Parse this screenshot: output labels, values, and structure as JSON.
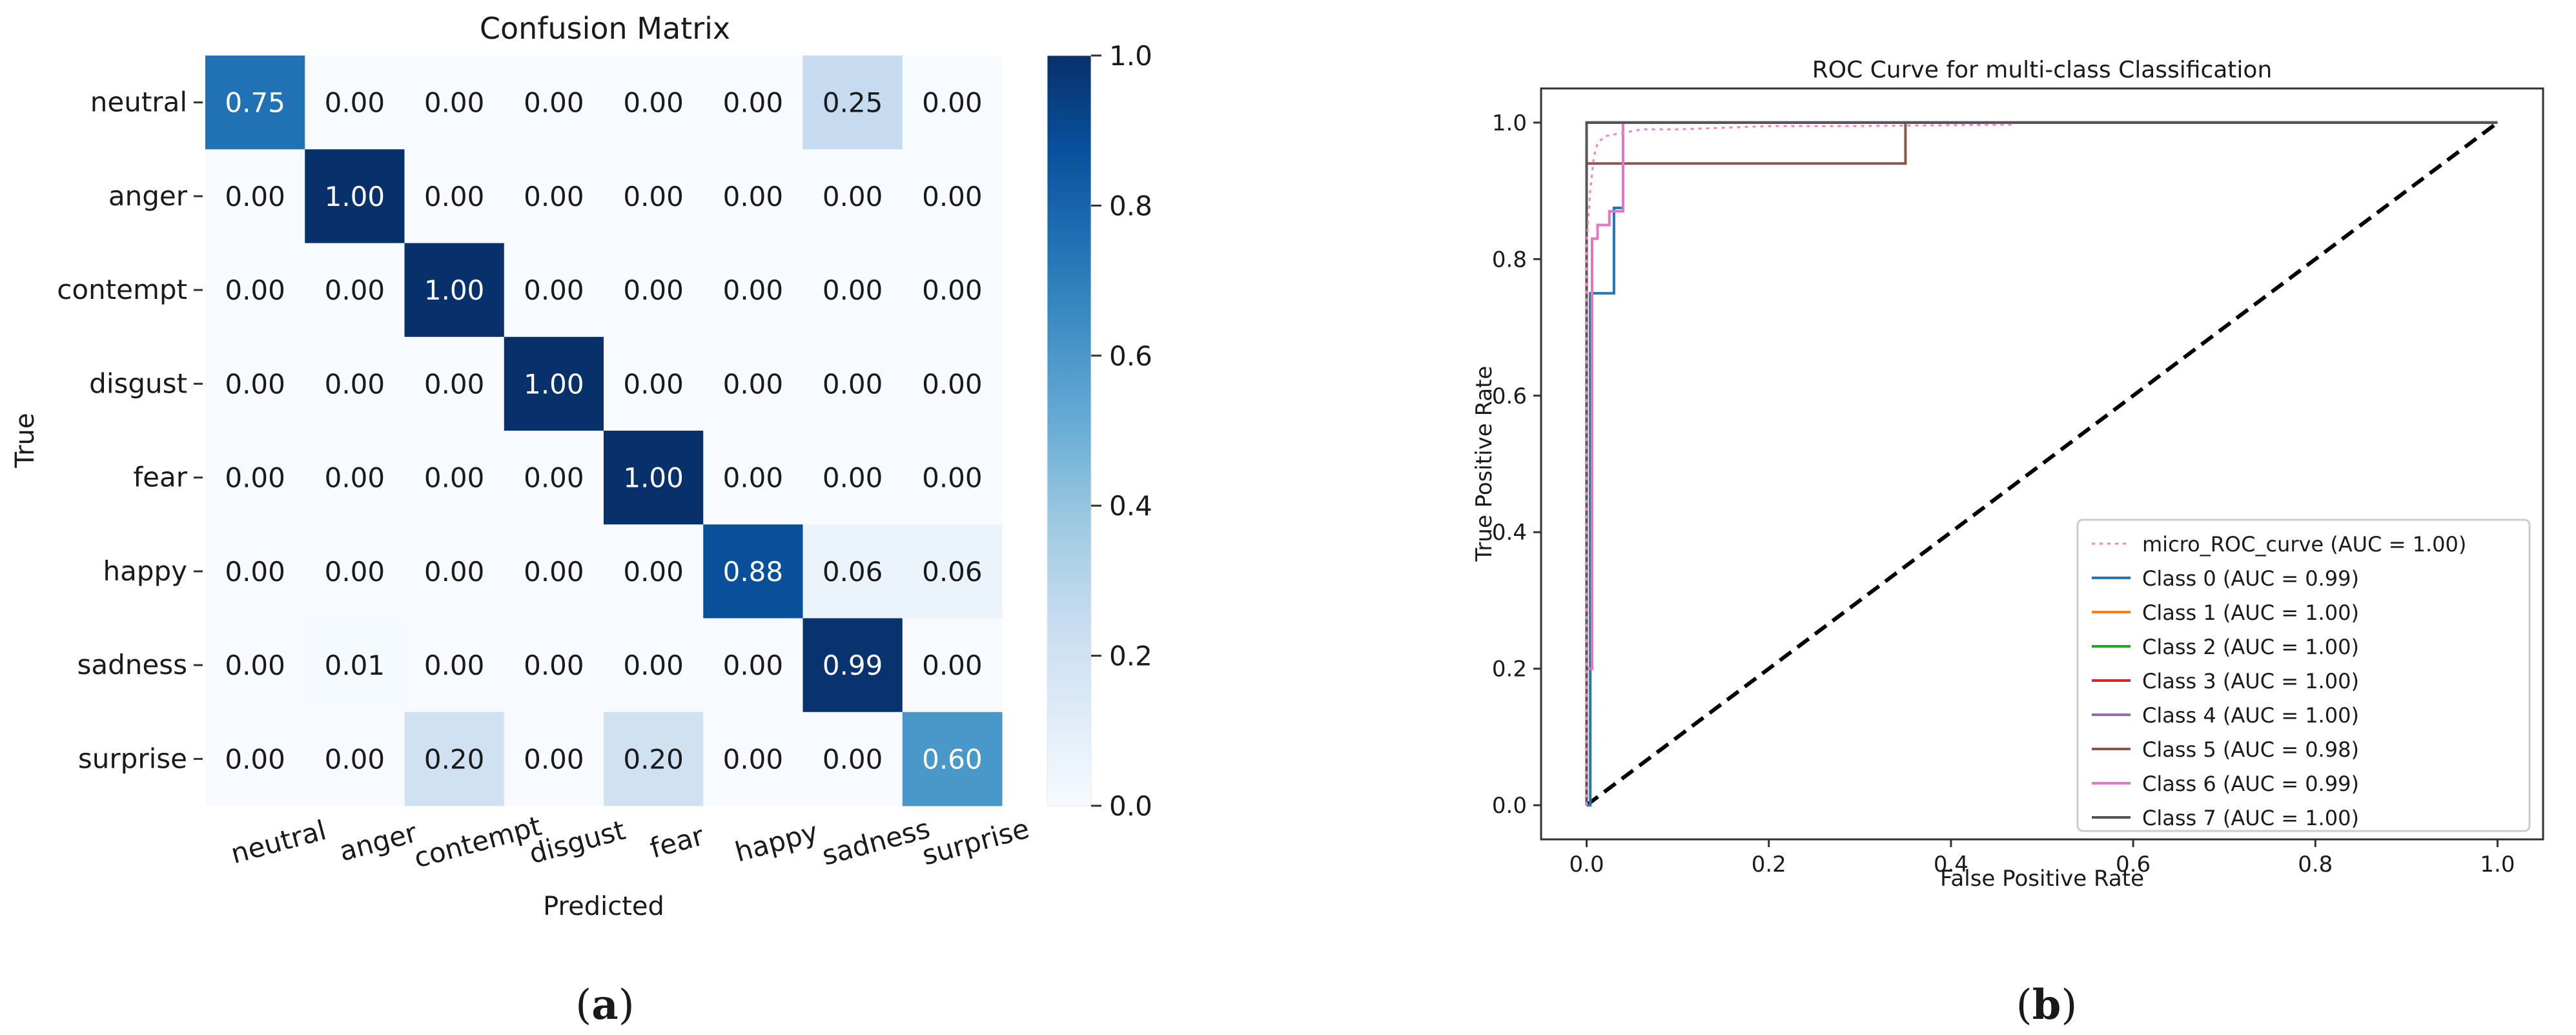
{
  "panels": [
    {
      "label_open": "(",
      "label_letter": "a",
      "label_close": ")"
    },
    {
      "label_open": "(",
      "label_letter": "b",
      "label_close": ")"
    }
  ],
  "colors": {
    "heat_low": "#f7fbff",
    "heat_high": "#08306b",
    "text_dark": "#1a1a1a",
    "text_light": "#ffffff"
  },
  "chart_data": [
    {
      "type": "heatmap",
      "title": "Confusion Matrix",
      "xlabel": "Predicted",
      "ylabel": "True",
      "x_categories": [
        "neutral",
        "anger",
        "contempt",
        "disgust",
        "fear",
        "happy",
        "sadness",
        "surprise"
      ],
      "y_categories": [
        "neutral",
        "anger",
        "contempt",
        "disgust",
        "fear",
        "happy",
        "sadness",
        "surprise"
      ],
      "values": [
        [
          0.75,
          0.0,
          0.0,
          0.0,
          0.0,
          0.0,
          0.25,
          0.0
        ],
        [
          0.0,
          1.0,
          0.0,
          0.0,
          0.0,
          0.0,
          0.0,
          0.0
        ],
        [
          0.0,
          0.0,
          1.0,
          0.0,
          0.0,
          0.0,
          0.0,
          0.0
        ],
        [
          0.0,
          0.0,
          0.0,
          1.0,
          0.0,
          0.0,
          0.0,
          0.0
        ],
        [
          0.0,
          0.0,
          0.0,
          0.0,
          1.0,
          0.0,
          0.0,
          0.0
        ],
        [
          0.0,
          0.0,
          0.0,
          0.0,
          0.0,
          0.88,
          0.06,
          0.06
        ],
        [
          0.0,
          0.01,
          0.0,
          0.0,
          0.0,
          0.0,
          0.99,
          0.0
        ],
        [
          0.0,
          0.0,
          0.2,
          0.0,
          0.2,
          0.0,
          0.0,
          0.6
        ]
      ],
      "colorbar": {
        "range": [
          0.0,
          1.0
        ],
        "ticks": [
          0.0,
          0.2,
          0.4,
          0.6,
          0.8,
          1.0
        ],
        "tick_labels": [
          "0.0",
          "0.2",
          "0.4",
          "0.6",
          "0.8",
          "1.0"
        ]
      }
    },
    {
      "type": "line",
      "title": "ROC Curve for multi-class Classification",
      "xlabel": "False Positive Rate",
      "ylabel": "True Positive Rate",
      "xlim": [
        -0.05,
        1.05
      ],
      "ylim": [
        -0.05,
        1.05
      ],
      "x_ticks": [
        0.0,
        0.2,
        0.4,
        0.6,
        0.8,
        1.0
      ],
      "x_tick_labels": [
        "0.0",
        "0.2",
        "0.4",
        "0.6",
        "0.8",
        "1.0"
      ],
      "y_ticks": [
        0.0,
        0.2,
        0.4,
        0.6,
        0.8,
        1.0
      ],
      "y_tick_labels": [
        "0.0",
        "0.2",
        "0.4",
        "0.6",
        "0.8",
        "1.0"
      ],
      "legend_position": "lower-right",
      "series": [
        {
          "name": "micro_ROC_curve (AUC = 1.00)",
          "color": "#ff7fbf",
          "style": "dotted",
          "x": [
            0,
            0,
            0.004,
            0.008,
            0.012,
            0.02,
            0.04,
            0.06,
            0.1,
            0.2,
            0.3,
            0.47
          ],
          "y": [
            0,
            0.82,
            0.9,
            0.95,
            0.97,
            0.98,
            0.985,
            0.99,
            0.99,
            0.995,
            0.995,
            0.997
          ]
        },
        {
          "name": "Class 0 (AUC = 0.99)",
          "color": "#1f77b4",
          "style": "solid",
          "x": [
            0,
            0.004,
            0.004,
            0.03,
            0.03,
            0.04,
            0.04,
            1.0
          ],
          "y": [
            0,
            0,
            0.75,
            0.75,
            0.875,
            0.875,
            1.0,
            1.0
          ]
        },
        {
          "name": "Class 1 (AUC = 1.00)",
          "color": "#ff7f0e",
          "style": "solid",
          "x": [
            0,
            0,
            1.0
          ],
          "y": [
            0,
            1.0,
            1.0
          ]
        },
        {
          "name": "Class 2 (AUC = 1.00)",
          "color": "#2ca02c",
          "style": "solid",
          "x": [
            0,
            0,
            1.0
          ],
          "y": [
            0,
            1.0,
            1.0
          ]
        },
        {
          "name": "Class 3 (AUC = 1.00)",
          "color": "#d62728",
          "style": "solid",
          "x": [
            0,
            0,
            1.0
          ],
          "y": [
            0,
            1.0,
            1.0
          ]
        },
        {
          "name": "Class 4 (AUC = 1.00)",
          "color": "#9467bd",
          "style": "solid",
          "x": [
            0,
            0,
            1.0
          ],
          "y": [
            0,
            1.0,
            1.0
          ]
        },
        {
          "name": "Class 5 (AUC = 0.98)",
          "color": "#8c564b",
          "style": "solid",
          "x": [
            0,
            0,
            0.006,
            0.006,
            0.35,
            0.35,
            1.0
          ],
          "y": [
            0,
            0.94,
            0.94,
            0.94,
            0.94,
            1.0,
            1.0
          ]
        },
        {
          "name": "Class 6 (AUC = 0.99)",
          "color": "#e377c2",
          "style": "solid",
          "x": [
            0,
            0,
            0.006,
            0.006,
            0.012,
            0.012,
            0.025,
            0.025,
            0.04,
            0.04,
            1.0
          ],
          "y": [
            0,
            0.2,
            0.2,
            0.83,
            0.83,
            0.85,
            0.85,
            0.87,
            0.87,
            1.0,
            1.0
          ]
        },
        {
          "name": "Class 7 (AUC = 1.00)",
          "color": "#555555",
          "style": "solid",
          "x": [
            0,
            0,
            1.0
          ],
          "y": [
            0,
            1.0,
            1.0
          ]
        },
        {
          "name": "chance",
          "color": "#000000",
          "style": "dashed",
          "in_legend": false,
          "x": [
            0,
            1.0
          ],
          "y": [
            0,
            1.0
          ]
        }
      ]
    }
  ]
}
